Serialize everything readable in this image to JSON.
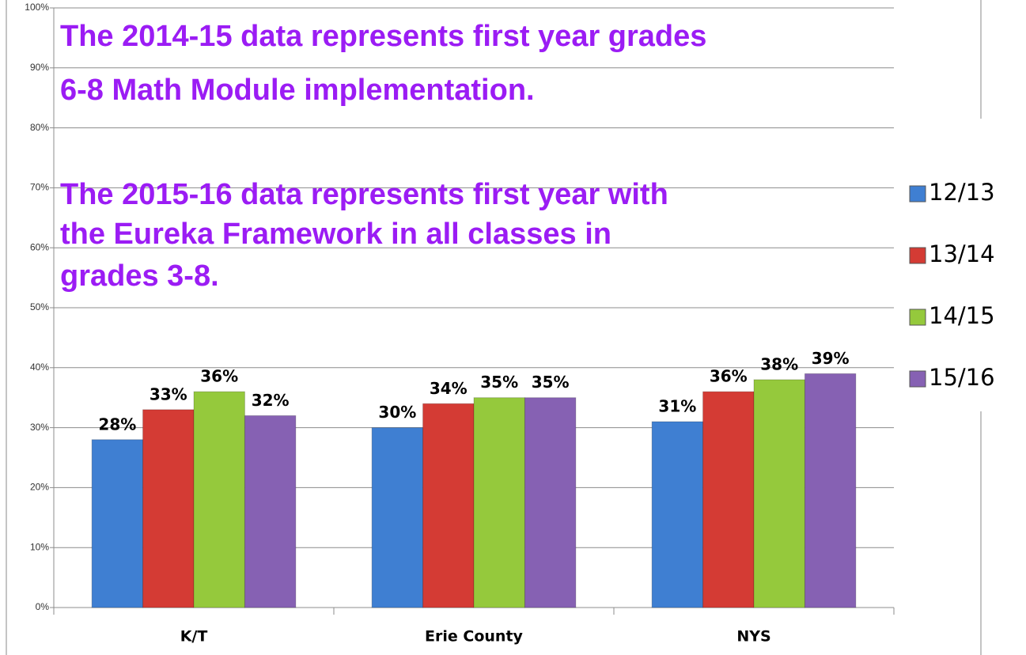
{
  "chart_data": {
    "type": "bar",
    "categories": [
      "K/T",
      "Erie County",
      "NYS"
    ],
    "series": [
      {
        "name": "12/13",
        "color": "#3f7fd2",
        "values": [
          28,
          30,
          31
        ],
        "value_labels": [
          "28%",
          "30%",
          "31%"
        ]
      },
      {
        "name": "13/14",
        "color": "#d43b34",
        "values": [
          33,
          34,
          36
        ],
        "value_labels": [
          "33%",
          "34%",
          "36%"
        ]
      },
      {
        "name": "14/15",
        "color": "#95c93c",
        "values": [
          36,
          35,
          38
        ],
        "value_labels": [
          "36%",
          "35%",
          "38%"
        ]
      },
      {
        "name": "15/16",
        "color": "#8661b3",
        "values": [
          32,
          35,
          39
        ],
        "value_labels": [
          "32%",
          "35%",
          "39%"
        ]
      }
    ],
    "ylim": [
      0,
      100
    ],
    "yticks": [
      {
        "value": 0,
        "label": "0%"
      },
      {
        "value": 10,
        "label": "10%"
      },
      {
        "value": 20,
        "label": "20%"
      },
      {
        "value": 30,
        "label": "30%"
      },
      {
        "value": 40,
        "label": "40%"
      },
      {
        "value": 50,
        "label": "50%"
      },
      {
        "value": 60,
        "label": "60%"
      },
      {
        "value": 70,
        "label": "70%"
      },
      {
        "value": 80,
        "label": "80%"
      },
      {
        "value": 90,
        "label": "90%"
      },
      {
        "value": 100,
        "label": "100%"
      }
    ],
    "grid": true,
    "legend": "right",
    "annotations": [
      [
        "The 2014-15 data represents first year grades",
        "6-8 Math Module implementation."
      ],
      [
        "The 2015-16 data represents first year with",
        "the Eureka Framework in all classes in",
        "grades 3-8."
      ]
    ]
  }
}
